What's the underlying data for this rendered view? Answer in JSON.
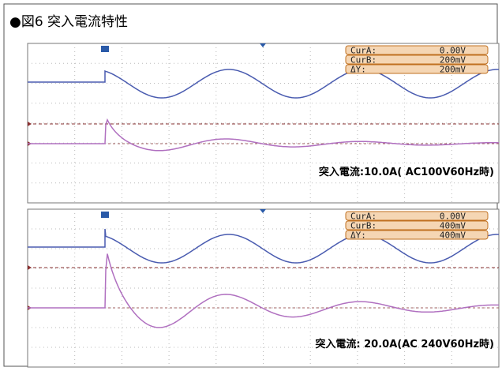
{
  "title": "●図6 突入電流特性",
  "panels": [
    {
      "cursors": [
        {
          "label": "CurA:",
          "value": "0.00V"
        },
        {
          "label": "CurB:",
          "value": "200mV"
        },
        {
          "label": "ΔY:",
          "value": "200mV"
        }
      ],
      "caption": "突入電流:10.0A( AC100V60Hz時)"
    },
    {
      "cursors": [
        {
          "label": "CurA:",
          "value": "0.00V"
        },
        {
          "label": "CurB:",
          "value": "400mV"
        },
        {
          "label": "ΔY:",
          "value": "400mV"
        }
      ],
      "caption": "突入電流: 20.0A(AC 240V60Hz時)"
    }
  ]
}
